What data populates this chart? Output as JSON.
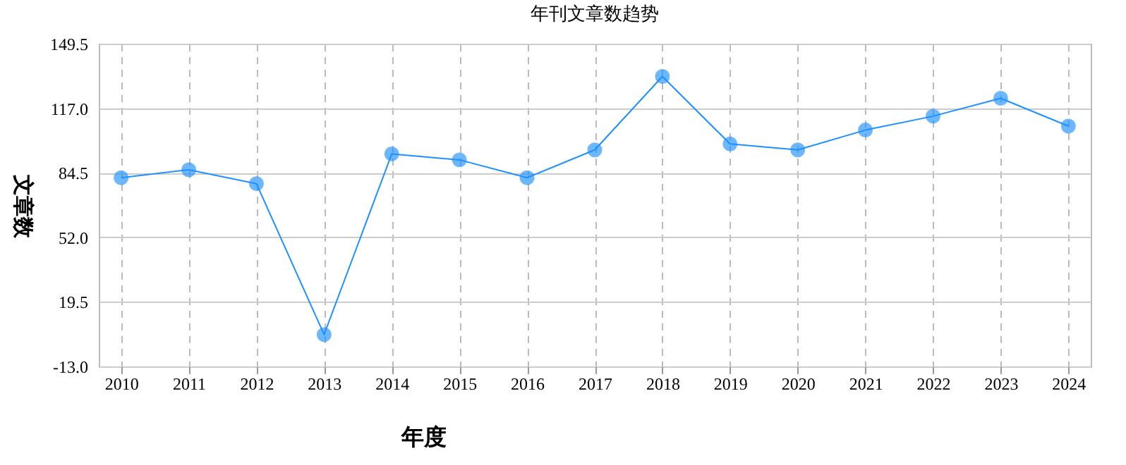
{
  "chart_data": {
    "type": "line",
    "title": "年刊文章数趋势",
    "xlabel": "年度",
    "ylabel": "文章数",
    "categories": [
      "2010",
      "2011",
      "2012",
      "2013",
      "2014",
      "2015",
      "2016",
      "2017",
      "2018",
      "2019",
      "2020",
      "2021",
      "2022",
      "2023",
      "2024"
    ],
    "series": [
      {
        "color": "#1e90ff",
        "values": [
          82,
          86,
          79,
          3,
          94,
          91,
          82,
          96,
          133,
          99,
          96,
          106,
          113,
          122,
          108
        ]
      }
    ],
    "ylim": [
      -13,
      149.5
    ],
    "yticks": [
      {
        "value": -13,
        "label": "-13.0"
      },
      19.5,
      {
        "value": 52,
        "label": "52.0"
      },
      84.5,
      {
        "value": 117,
        "label": "117.0"
      },
      149.5
    ],
    "grid": true,
    "marker": "circle",
    "line_style": "solid"
  }
}
